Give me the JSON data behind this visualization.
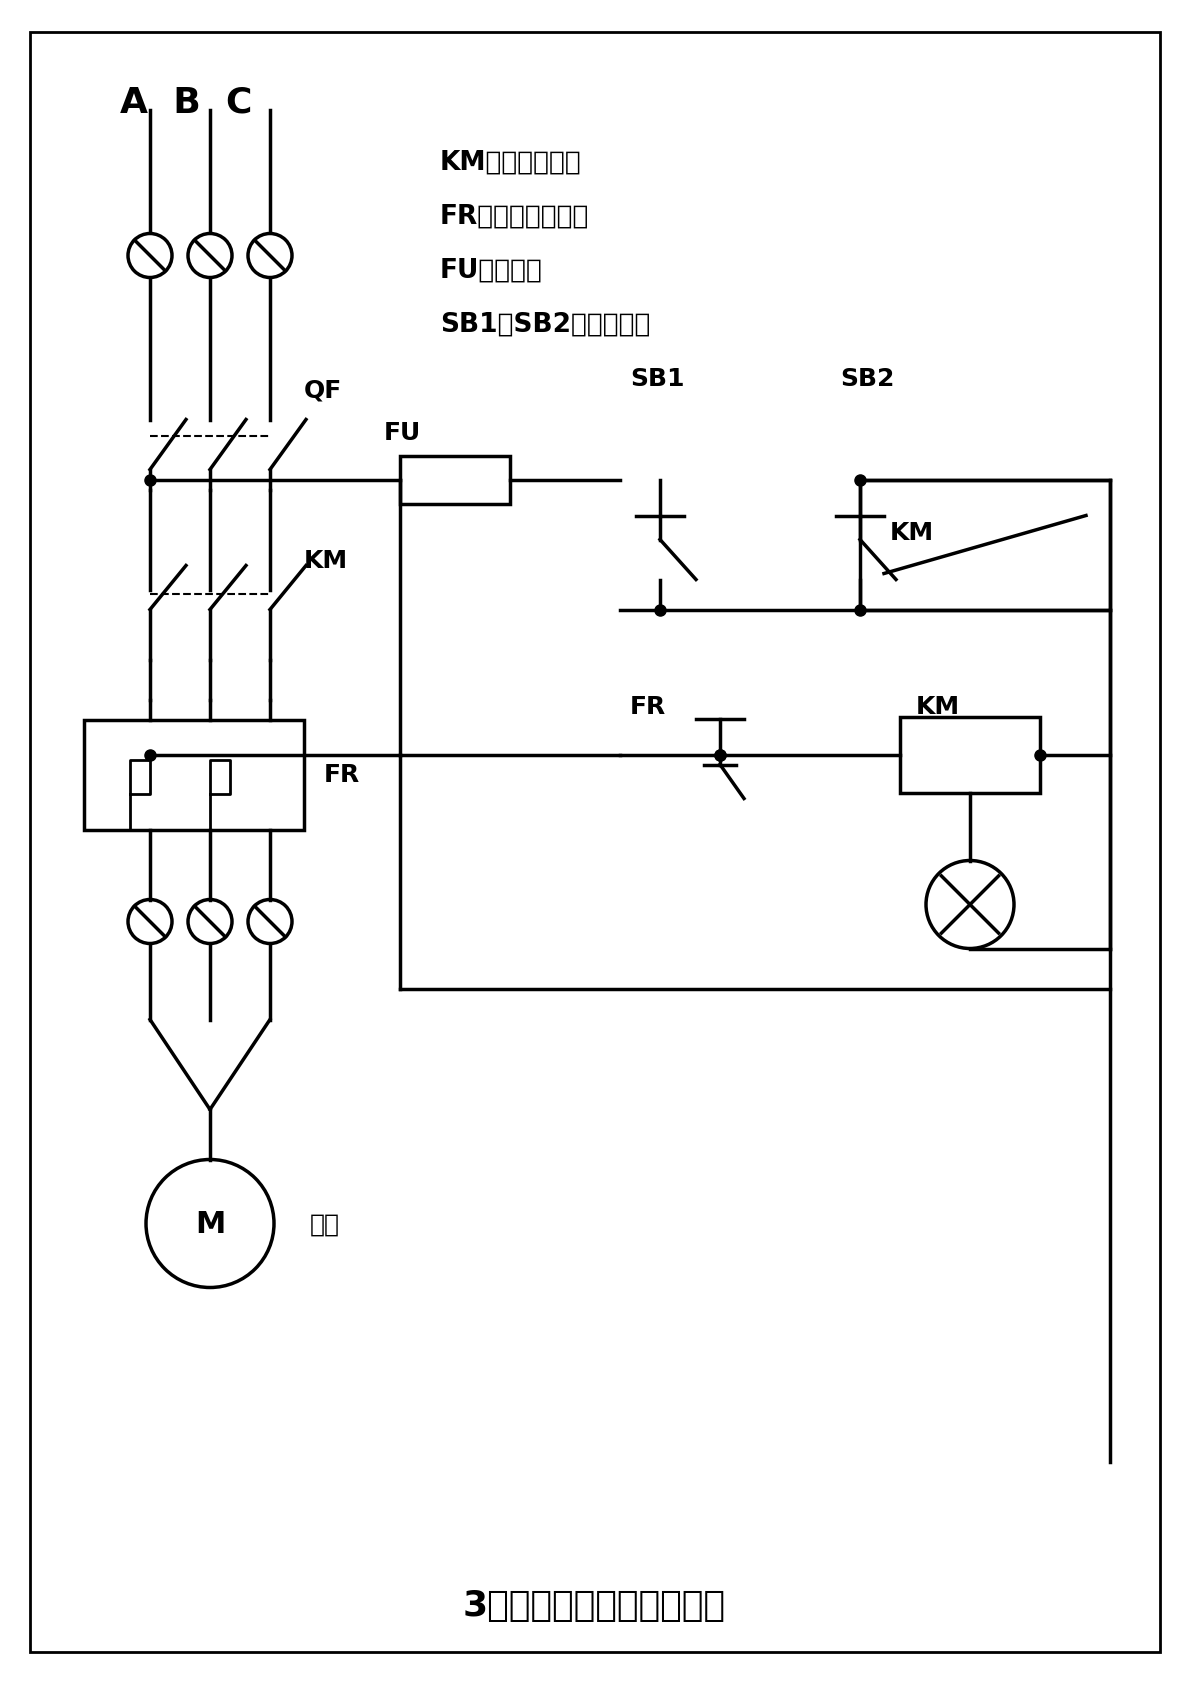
{
  "title": "3相电机启、停控制接线图",
  "legend_lines": [
    "KM：交流接触器",
    "FR：热过载继电器",
    "FU：保险丝",
    "SB1、SB2：启停按钮"
  ],
  "abc_label": "A  B  C",
  "qf_label": "QF",
  "km_label": "KM",
  "fr_label": "FR",
  "fu_label": "FU",
  "sb1_label": "SB1",
  "sb2_label": "SB2",
  "motor_label": "M",
  "motor_text": "电机",
  "bg_color": "#ffffff",
  "line_color": "#000000",
  "font_size_title": 26,
  "font_size_label": 18,
  "font_size_legend": 19,
  "font_size_abc": 26
}
